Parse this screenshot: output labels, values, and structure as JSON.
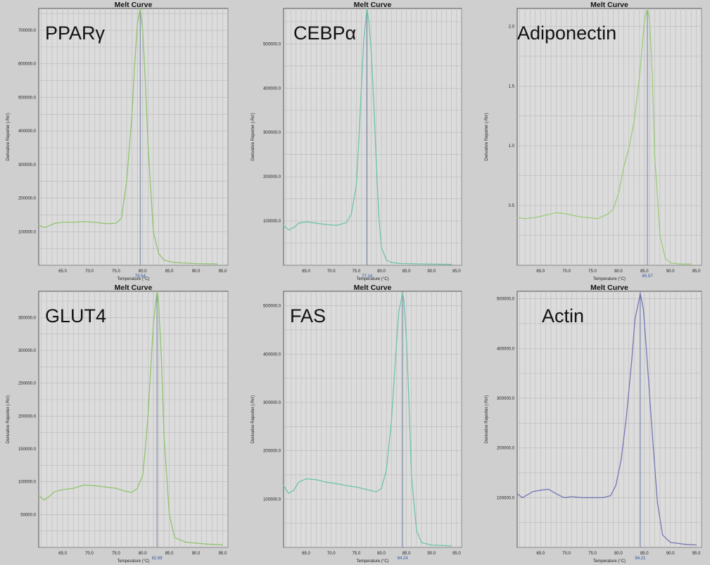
{
  "colors": {
    "page_bg": "#cfcfcf",
    "plot_bg": "#dcdcdc",
    "grid": "#b9b9b9",
    "marker_line": "#6e7fa6"
  },
  "chart_data": [
    {
      "type": "line",
      "title": "Melt Curve",
      "gene_label": "PPARγ",
      "xlabel": "Temperature (°C)",
      "ylabel": "Derivative Reporter (-Rn')",
      "xlim": [
        60.5,
        96
      ],
      "ylim": [
        0,
        765000
      ],
      "xticks": [
        65,
        70,
        75,
        80,
        85,
        90,
        95
      ],
      "xtick_labels": [
        "65.0",
        "70.0",
        "75.0",
        "80.0",
        "85.0",
        "90.0",
        "95.0"
      ],
      "yticks": [
        100000,
        200000,
        300000,
        400000,
        500000,
        600000,
        700000
      ],
      "ytick_labels": [
        "100000.0",
        "200000.0",
        "300000.0",
        "400000.0",
        "500000.0",
        "600000.0",
        "700000.0"
      ],
      "peak_temp": 79.54,
      "peak_label": "79.54",
      "grid": true,
      "curve_color": "#8fc46e",
      "series": [
        {
          "x": [
            60.5,
            61.5,
            62.5,
            63.5,
            65,
            67,
            69,
            71,
            73,
            75,
            76,
            77,
            78,
            78.5,
            79,
            79.54,
            80,
            80.5,
            81,
            82,
            83,
            84,
            86,
            90,
            94
          ],
          "y": [
            120000,
            112000,
            118000,
            125000,
            128000,
            128000,
            130000,
            128000,
            124000,
            125000,
            140000,
            250000,
            450000,
            600000,
            720000,
            765000,
            700000,
            550000,
            360000,
            100000,
            35000,
            15000,
            8000,
            5000,
            4000
          ]
        }
      ]
    },
    {
      "type": "line",
      "title": "Melt Curve",
      "gene_label": "CEBPα",
      "xlabel": "Temperature (°C)",
      "ylabel": "Derivative Reporter (-Rn')",
      "xlim": [
        60.5,
        96
      ],
      "ylim": [
        0,
        580000
      ],
      "xticks": [
        65,
        70,
        75,
        80,
        85,
        90,
        95
      ],
      "xtick_labels": [
        "65.0",
        "70.0",
        "75.0",
        "80.0",
        "85.0",
        "90.0",
        "95.0"
      ],
      "yticks": [
        100000,
        200000,
        300000,
        400000,
        500000
      ],
      "ytick_labels": [
        "100000.0",
        "200000.0",
        "300000.0",
        "400000.0",
        "500000.0"
      ],
      "peak_temp": 77.14,
      "peak_label": "77.14",
      "grid": true,
      "curve_color": "#6ec4a9",
      "series": [
        {
          "x": [
            60.5,
            61.5,
            62.5,
            63.5,
            65,
            67,
            69,
            71,
            73,
            74,
            75,
            75.5,
            76,
            76.5,
            77.14,
            77.5,
            78,
            78.5,
            79,
            79.5,
            80,
            81,
            82,
            84,
            88,
            94
          ],
          "y": [
            90000,
            80000,
            85000,
            95000,
            98000,
            95000,
            92000,
            90000,
            96000,
            115000,
            180000,
            280000,
            400000,
            510000,
            580000,
            550000,
            480000,
            360000,
            230000,
            110000,
            40000,
            12000,
            6000,
            4000,
            3000,
            2000
          ]
        }
      ]
    },
    {
      "type": "line",
      "title": "Melt Curve",
      "gene_label": "Adiponectin",
      "xlabel": "Temperature (°C)",
      "ylabel": "Derivative Reporter (-Rn')",
      "xlim": [
        60.5,
        96
      ],
      "ylim": [
        0,
        2.15
      ],
      "xticks": [
        65,
        70,
        75,
        80,
        85,
        90,
        95
      ],
      "xtick_labels": [
        "65.0",
        "70.0",
        "75.0",
        "80.0",
        "85.0",
        "90.0",
        "95.0"
      ],
      "yticks": [
        0.5,
        1.0,
        1.5,
        2.0
      ],
      "ytick_labels": [
        "0.5",
        "1.0",
        "1.5",
        "2.0"
      ],
      "peak_temp": 85.57,
      "peak_label": "85.57",
      "grid": true,
      "curve_color": "#9ccc7a",
      "series": [
        {
          "x": [
            60.5,
            62,
            64,
            66,
            68,
            70,
            72,
            74,
            76,
            77,
            78,
            79,
            80,
            81,
            82,
            83,
            84,
            84.5,
            85,
            85.57,
            86,
            86.5,
            87,
            88,
            89,
            90,
            92,
            94
          ],
          "y": [
            0.4,
            0.39,
            0.4,
            0.42,
            0.44,
            0.43,
            0.41,
            0.4,
            0.39,
            0.41,
            0.43,
            0.47,
            0.6,
            0.82,
            0.98,
            1.2,
            1.55,
            1.8,
            2.05,
            2.15,
            2.05,
            1.6,
            0.9,
            0.25,
            0.06,
            0.02,
            0.01,
            0.01
          ]
        }
      ]
    },
    {
      "type": "line",
      "title": "Melt Curve",
      "gene_label": "GLUT4",
      "xlabel": "Temperature (°C)",
      "ylabel": "Derivative Reporter (-Rn')",
      "xlim": [
        60.5,
        96
      ],
      "ylim": [
        0,
        390000
      ],
      "xticks": [
        65,
        70,
        75,
        80,
        85,
        90,
        95
      ],
      "xtick_labels": [
        "65.0",
        "70.0",
        "75.0",
        "80.0",
        "85.0",
        "90.0",
        "95.0"
      ],
      "yticks": [
        50000,
        100000,
        150000,
        200000,
        250000,
        300000,
        350000
      ],
      "ytick_labels": [
        "50000.0",
        "100000.0",
        "150000.0",
        "200000.0",
        "250000.0",
        "300000.0",
        "350000.0"
      ],
      "peak_temp": 82.69,
      "peak_label": "82.69",
      "grid": true,
      "curve_color": "#8fc46e",
      "series": [
        {
          "x": [
            60.5,
            61.5,
            62.5,
            63.5,
            65,
            67,
            69,
            71,
            73,
            75,
            77,
            78,
            79,
            80,
            80.5,
            81,
            81.5,
            82,
            82.69,
            83,
            83.5,
            84,
            85,
            86,
            88,
            92,
            95
          ],
          "y": [
            80000,
            72000,
            78000,
            85000,
            88000,
            90000,
            95000,
            94000,
            92000,
            90000,
            85000,
            84000,
            90000,
            110000,
            150000,
            200000,
            270000,
            340000,
            390000,
            370000,
            290000,
            170000,
            50000,
            15000,
            8000,
            5000,
            4000
          ]
        }
      ]
    },
    {
      "type": "line",
      "title": "Melt Curve",
      "gene_label": "FAS",
      "xlabel": "Temperature (°C)",
      "ylabel": "Derivative Reporter (-Rn')",
      "xlim": [
        60.5,
        96
      ],
      "ylim": [
        0,
        530000
      ],
      "xticks": [
        65,
        70,
        75,
        80,
        85,
        90,
        95
      ],
      "xtick_labels": [
        "65.0",
        "70.0",
        "75.0",
        "80.0",
        "85.0",
        "90.0",
        "95.0"
      ],
      "yticks": [
        100000,
        200000,
        300000,
        400000,
        500000
      ],
      "ytick_labels": [
        "100000.0",
        "200000.0",
        "300000.0",
        "400000.0",
        "500000.0"
      ],
      "peak_temp": 84.24,
      "peak_label": "84.24",
      "grid": true,
      "curve_color": "#6ec4a9",
      "series": [
        {
          "x": [
            60.5,
            61.5,
            62.5,
            63.5,
            65,
            67,
            69,
            71,
            73,
            75,
            77,
            79,
            80,
            81,
            82,
            82.5,
            83,
            83.5,
            84.24,
            84.5,
            85,
            85.5,
            86,
            87,
            88,
            90,
            94
          ],
          "y": [
            128000,
            112000,
            118000,
            135000,
            142000,
            140000,
            135000,
            132000,
            128000,
            125000,
            120000,
            115000,
            122000,
            160000,
            260000,
            340000,
            420000,
            490000,
            525000,
            510000,
            430000,
            300000,
            150000,
            35000,
            10000,
            5000,
            3000
          ]
        }
      ]
    },
    {
      "type": "line",
      "title": "Melt Curve",
      "gene_label": "Actin",
      "xlabel": "Temperature (°C)",
      "ylabel": "Derivative Reporter (-Rn')",
      "xlim": [
        60.5,
        96
      ],
      "ylim": [
        0,
        515000
      ],
      "xticks": [
        65,
        70,
        75,
        80,
        85,
        90,
        95
      ],
      "xtick_labels": [
        "65.0",
        "70.0",
        "75.0",
        "80.0",
        "85.0",
        "90.0",
        "95.0"
      ],
      "yticks": [
        100000,
        200000,
        300000,
        400000,
        500000
      ],
      "ytick_labels": [
        "100000.0",
        "200000.0",
        "300000.0",
        "400000.0",
        "500000.0"
      ],
      "peak_temp": 84.21,
      "peak_label": "84.21",
      "grid": true,
      "curve_color": "#7577b5",
      "series": [
        {
          "x": [
            60.5,
            61.5,
            62.5,
            63.5,
            65,
            66.5,
            68,
            69.5,
            71,
            73,
            75,
            77,
            78.5,
            79.5,
            80.5,
            81.5,
            82.5,
            83.2,
            84.21,
            84.8,
            85.5,
            86.5,
            87.5,
            88.5,
            90,
            93,
            95
          ],
          "y": [
            108000,
            100000,
            106000,
            112000,
            115000,
            117000,
            108000,
            100000,
            102000,
            100000,
            100000,
            100000,
            104000,
            125000,
            175000,
            260000,
            370000,
            460000,
            510000,
            480000,
            380000,
            230000,
            90000,
            25000,
            10000,
            6000,
            5000
          ]
        }
      ]
    }
  ]
}
